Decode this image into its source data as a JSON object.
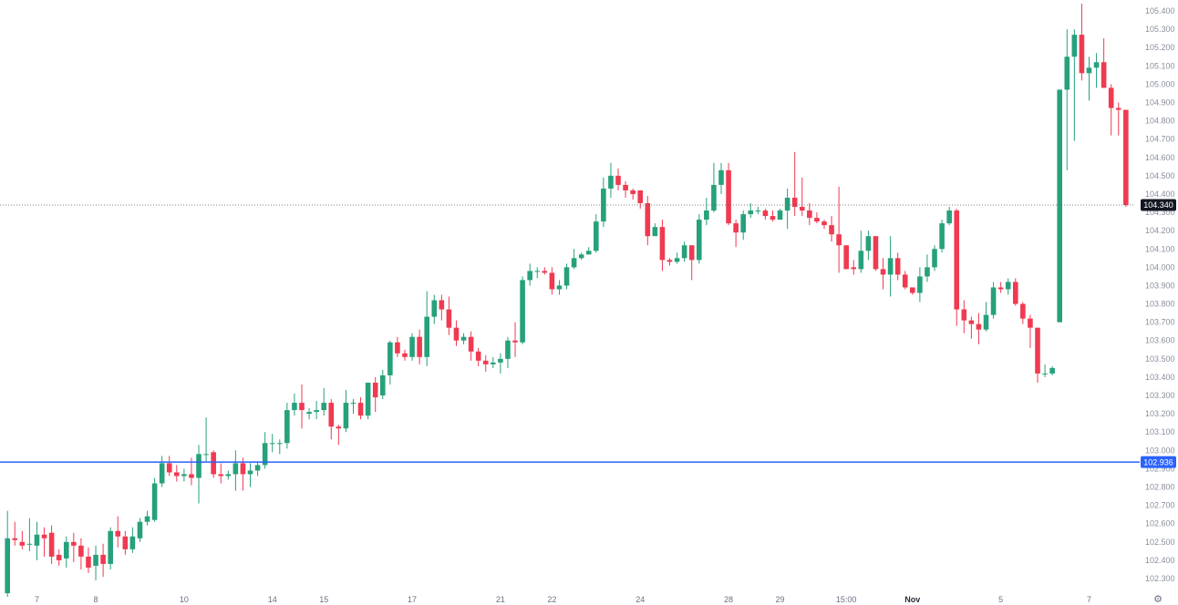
{
  "chart_data": {
    "type": "candlestick",
    "colors": {
      "up": "#26a17b",
      "down": "#ef3a51",
      "level_line": "#2962ff"
    },
    "y_axis": {
      "range": [
        102.22,
        105.45
      ],
      "ticks": [
        "105.400",
        "105.300",
        "105.200",
        "105.100",
        "105.000",
        "104.900",
        "104.800",
        "104.700",
        "104.600",
        "104.500",
        "104.400",
        "104.300",
        "104.200",
        "104.100",
        "104.000",
        "103.900",
        "103.800",
        "103.700",
        "103.600",
        "103.500",
        "103.400",
        "103.300",
        "103.200",
        "103.100",
        "103.000",
        "102.900",
        "102.800",
        "102.700",
        "102.600",
        "102.500",
        "102.400",
        "102.300"
      ]
    },
    "x_axis": {
      "labels": [
        {
          "text": "7",
          "bar": 4
        },
        {
          "text": "8",
          "bar": 12
        },
        {
          "text": "10",
          "bar": 24
        },
        {
          "text": "14",
          "bar": 36
        },
        {
          "text": "15",
          "bar": 43
        },
        {
          "text": "17",
          "bar": 55
        },
        {
          "text": "21",
          "bar": 67
        },
        {
          "text": "22",
          "bar": 74
        },
        {
          "text": "24",
          "bar": 86
        },
        {
          "text": "28",
          "bar": 98
        },
        {
          "text": "29",
          "bar": 105
        },
        {
          "text": "15:00",
          "bar": 114
        },
        {
          "text": "Nov",
          "bar": 123,
          "bold": true
        },
        {
          "text": "5",
          "bar": 135
        },
        {
          "text": "7",
          "bar": 147
        }
      ]
    },
    "last_price": {
      "label": "104.340",
      "value": 104.34
    },
    "level": {
      "label": "102.936",
      "value": 102.936
    },
    "candles": [
      [
        102.22,
        102.52,
        102.2,
        102.67
      ],
      [
        102.52,
        102.51,
        102.48,
        102.61
      ],
      [
        102.5,
        102.48,
        102.46,
        102.56
      ],
      [
        102.49,
        102.49,
        102.45,
        102.63
      ],
      [
        102.48,
        102.54,
        102.4,
        102.61
      ],
      [
        102.54,
        102.52,
        102.42,
        102.58
      ],
      [
        102.55,
        102.42,
        102.38,
        102.59
      ],
      [
        102.43,
        102.4,
        102.37,
        102.46
      ],
      [
        102.41,
        102.5,
        102.36,
        102.53
      ],
      [
        102.5,
        102.48,
        102.39,
        102.55
      ],
      [
        102.48,
        102.42,
        102.35,
        102.52
      ],
      [
        102.42,
        102.36,
        102.33,
        102.47
      ],
      [
        102.37,
        102.43,
        102.29,
        102.48
      ],
      [
        102.43,
        102.38,
        102.31,
        102.49
      ],
      [
        102.38,
        102.56,
        102.35,
        102.58
      ],
      [
        102.56,
        102.53,
        102.47,
        102.64
      ],
      [
        102.53,
        102.46,
        102.43,
        102.56
      ],
      [
        102.46,
        102.53,
        102.44,
        102.58
      ],
      [
        102.52,
        102.61,
        102.5,
        102.63
      ],
      [
        102.61,
        102.64,
        102.59,
        102.67
      ],
      [
        102.62,
        102.82,
        102.61,
        102.85
      ],
      [
        102.82,
        102.93,
        102.8,
        102.97
      ],
      [
        102.93,
        102.88,
        102.86,
        102.97
      ],
      [
        102.88,
        102.86,
        102.83,
        102.92
      ],
      [
        102.86,
        102.87,
        102.83,
        102.9
      ],
      [
        102.87,
        102.85,
        102.81,
        102.96
      ],
      [
        102.85,
        102.98,
        102.71,
        103.03
      ],
      [
        102.98,
        102.98,
        102.94,
        103.18
      ],
      [
        102.99,
        102.87,
        102.85,
        103.0
      ],
      [
        102.87,
        102.86,
        102.82,
        102.93
      ],
      [
        102.86,
        102.87,
        102.84,
        102.89
      ],
      [
        102.87,
        102.93,
        102.78,
        103.0
      ],
      [
        102.93,
        102.87,
        102.78,
        102.96
      ],
      [
        102.87,
        102.89,
        102.8,
        102.93
      ],
      [
        102.89,
        102.92,
        102.86,
        102.94
      ],
      [
        102.92,
        103.04,
        102.9,
        103.1
      ],
      [
        103.04,
        103.04,
        102.99,
        103.09
      ],
      [
        103.04,
        103.04,
        102.98,
        103.06
      ],
      [
        103.04,
        103.22,
        103.01,
        103.26
      ],
      [
        103.22,
        103.26,
        103.19,
        103.31
      ],
      [
        103.26,
        103.22,
        103.12,
        103.36
      ],
      [
        103.2,
        103.21,
        103.17,
        103.23
      ],
      [
        103.21,
        103.22,
        103.17,
        103.27
      ],
      [
        103.22,
        103.26,
        103.19,
        103.34
      ],
      [
        103.26,
        103.13,
        103.06,
        103.28
      ],
      [
        103.13,
        103.12,
        103.03,
        103.14
      ],
      [
        103.12,
        103.26,
        103.1,
        103.33
      ],
      [
        103.26,
        103.26,
        103.2,
        103.28
      ],
      [
        103.26,
        103.19,
        103.17,
        103.29
      ],
      [
        103.19,
        103.37,
        103.17,
        103.37
      ],
      [
        103.37,
        103.29,
        103.21,
        103.4
      ],
      [
        103.3,
        103.41,
        103.28,
        103.44
      ],
      [
        103.41,
        103.59,
        103.36,
        103.6
      ],
      [
        103.59,
        103.53,
        103.51,
        103.62
      ],
      [
        103.53,
        103.51,
        103.49,
        103.55
      ],
      [
        103.51,
        103.62,
        103.49,
        103.64
      ],
      [
        103.62,
        103.51,
        103.47,
        103.66
      ],
      [
        103.51,
        103.73,
        103.46,
        103.87
      ],
      [
        103.73,
        103.82,
        103.69,
        103.85
      ],
      [
        103.82,
        103.77,
        103.71,
        103.85
      ],
      [
        103.77,
        103.67,
        103.63,
        103.84
      ],
      [
        103.67,
        103.6,
        103.57,
        103.71
      ],
      [
        103.6,
        103.62,
        103.58,
        103.64
      ],
      [
        103.62,
        103.54,
        103.49,
        103.65
      ],
      [
        103.54,
        103.49,
        103.46,
        103.56
      ],
      [
        103.49,
        103.47,
        103.43,
        103.52
      ],
      [
        103.47,
        103.48,
        103.45,
        103.51
      ],
      [
        103.48,
        103.5,
        103.42,
        103.53
      ],
      [
        103.5,
        103.6,
        103.45,
        103.62
      ],
      [
        103.6,
        103.59,
        103.51,
        103.7
      ],
      [
        103.59,
        103.93,
        103.58,
        103.95
      ],
      [
        103.93,
        103.98,
        103.9,
        104.02
      ],
      [
        103.98,
        103.98,
        103.94,
        104.0
      ],
      [
        103.98,
        103.97,
        103.96,
        104.0
      ],
      [
        103.97,
        103.88,
        103.85,
        104.0
      ],
      [
        103.88,
        103.9,
        103.85,
        103.93
      ],
      [
        103.9,
        104.0,
        103.88,
        104.02
      ],
      [
        104.0,
        104.05,
        103.99,
        104.1
      ],
      [
        104.05,
        104.07,
        104.04,
        104.08
      ],
      [
        104.07,
        104.09,
        104.07,
        104.11
      ],
      [
        104.09,
        104.25,
        104.08,
        104.29
      ],
      [
        104.25,
        104.43,
        104.22,
        104.49
      ],
      [
        104.43,
        104.5,
        104.38,
        104.57
      ],
      [
        104.5,
        104.45,
        104.42,
        104.54
      ],
      [
        104.45,
        104.42,
        104.38,
        104.47
      ],
      [
        104.42,
        104.4,
        104.37,
        104.43
      ],
      [
        104.42,
        104.35,
        104.32,
        104.42
      ],
      [
        104.35,
        104.17,
        104.12,
        104.39
      ],
      [
        104.17,
        104.22,
        104.18,
        104.24
      ],
      [
        104.22,
        104.04,
        103.98,
        104.26
      ],
      [
        104.04,
        104.03,
        104.01,
        104.05
      ],
      [
        104.03,
        104.05,
        104.02,
        104.08
      ],
      [
        104.05,
        104.12,
        104.03,
        104.14
      ],
      [
        104.12,
        104.04,
        103.93,
        104.12
      ],
      [
        104.04,
        104.26,
        104.02,
        104.29
      ],
      [
        104.26,
        104.31,
        104.23,
        104.38
      ],
      [
        104.31,
        104.45,
        104.3,
        104.57
      ],
      [
        104.45,
        104.53,
        104.4,
        104.57
      ],
      [
        104.53,
        104.24,
        104.23,
        104.57
      ],
      [
        104.24,
        104.19,
        104.11,
        104.26
      ],
      [
        104.19,
        104.29,
        104.15,
        104.31
      ],
      [
        104.29,
        104.31,
        104.27,
        104.35
      ],
      [
        104.31,
        104.31,
        104.29,
        104.33
      ],
      [
        104.31,
        104.28,
        104.26,
        104.32
      ],
      [
        104.28,
        104.26,
        104.25,
        104.31
      ],
      [
        104.26,
        104.31,
        104.26,
        104.32
      ],
      [
        104.31,
        104.38,
        104.21,
        104.43
      ],
      [
        104.38,
        104.33,
        104.28,
        104.63
      ],
      [
        104.33,
        104.31,
        104.28,
        104.49
      ],
      [
        104.31,
        104.27,
        104.23,
        104.35
      ],
      [
        104.27,
        104.25,
        104.24,
        104.3
      ],
      [
        104.25,
        104.23,
        104.21,
        104.26
      ],
      [
        104.23,
        104.18,
        104.14,
        104.28
      ],
      [
        104.18,
        104.12,
        103.97,
        104.44
      ],
      [
        104.12,
        103.99,
        103.99,
        104.12
      ],
      [
        104.0,
        103.99,
        103.96,
        104.04
      ],
      [
        103.99,
        104.09,
        103.97,
        104.2
      ],
      [
        104.09,
        104.17,
        104.04,
        104.2
      ],
      [
        104.17,
        103.99,
        103.98,
        104.17
      ],
      [
        103.99,
        103.96,
        103.88,
        104.05
      ],
      [
        103.96,
        104.05,
        103.84,
        104.17
      ],
      [
        104.05,
        103.96,
        103.93,
        104.08
      ],
      [
        103.96,
        103.89,
        103.88,
        103.98
      ],
      [
        103.89,
        103.86,
        103.85,
        103.89
      ],
      [
        103.86,
        103.95,
        103.81,
        104.0
      ],
      [
        103.95,
        104.0,
        103.92,
        104.07
      ],
      [
        104.0,
        104.1,
        103.98,
        104.12
      ],
      [
        104.1,
        104.24,
        104.08,
        104.26
      ],
      [
        104.24,
        104.31,
        104.23,
        104.33
      ],
      [
        104.31,
        103.77,
        103.68,
        104.32
      ],
      [
        103.77,
        103.71,
        103.64,
        103.82
      ],
      [
        103.71,
        103.69,
        103.61,
        103.73
      ],
      [
        103.69,
        103.66,
        103.58,
        103.75
      ],
      [
        103.66,
        103.74,
        103.65,
        103.81
      ],
      [
        103.74,
        103.89,
        103.72,
        103.92
      ],
      [
        103.89,
        103.88,
        103.86,
        103.92
      ],
      [
        103.88,
        103.92,
        103.85,
        103.94
      ],
      [
        103.92,
        103.8,
        103.79,
        103.94
      ],
      [
        103.8,
        103.72,
        103.69,
        103.81
      ],
      [
        103.72,
        103.67,
        103.56,
        103.74
      ],
      [
        103.67,
        103.42,
        103.37,
        103.67
      ],
      [
        103.42,
        103.42,
        103.4,
        103.47
      ],
      [
        103.42,
        103.45,
        103.41,
        103.46
      ],
      [
        103.7,
        104.97,
        103.7,
        104.97
      ],
      [
        104.97,
        105.15,
        104.53,
        105.3
      ],
      [
        105.15,
        105.27,
        104.69,
        105.3
      ],
      [
        105.27,
        105.06,
        105.02,
        105.44
      ],
      [
        105.06,
        105.09,
        104.91,
        105.15
      ],
      [
        105.09,
        105.12,
        104.98,
        105.17
      ],
      [
        105.12,
        104.98,
        104.98,
        105.25
      ],
      [
        104.98,
        104.87,
        104.72,
        105.0
      ],
      [
        104.87,
        104.86,
        104.72,
        104.9
      ],
      [
        104.86,
        104.34,
        104.33,
        104.86
      ]
    ]
  }
}
